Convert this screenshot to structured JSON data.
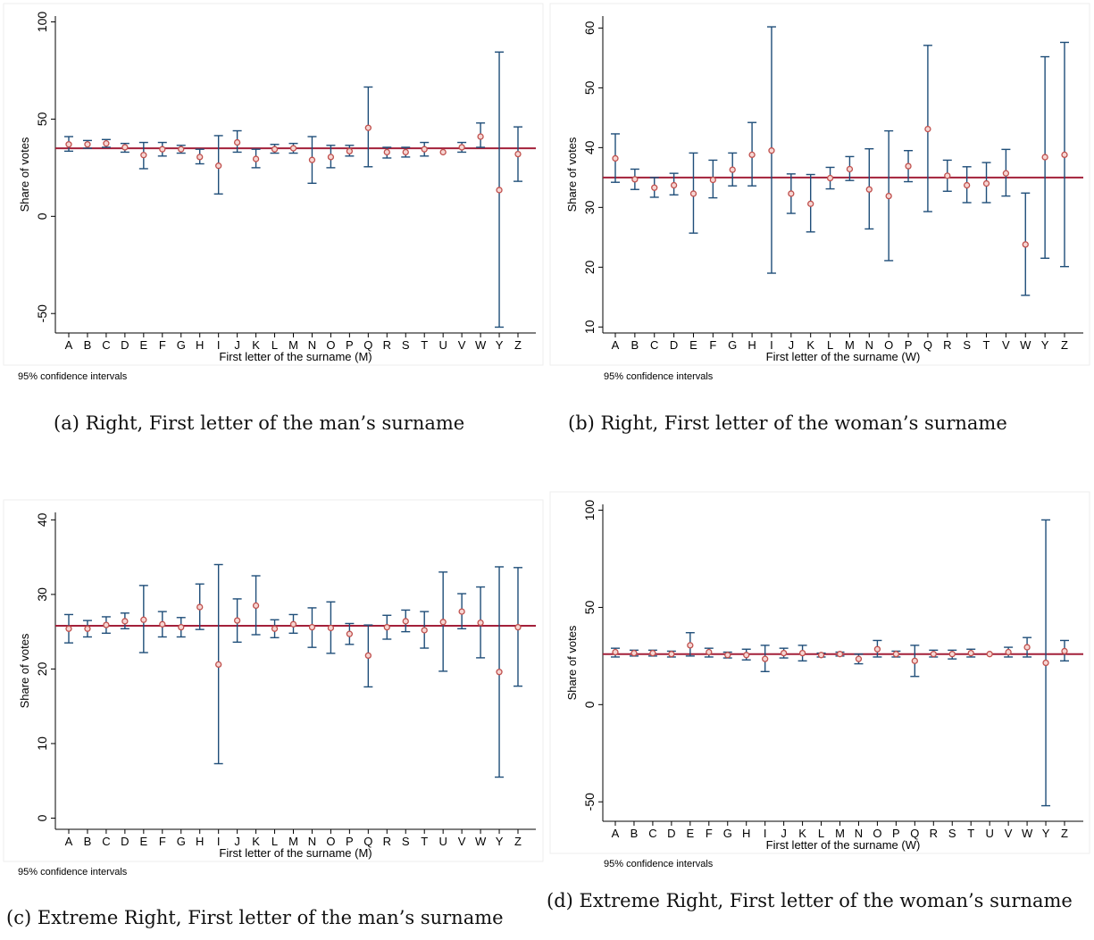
{
  "chart_data": [
    {
      "type": "scatter",
      "subtype": "point-with-confidence-intervals",
      "caption": "(a) Right, First letter of the man’s surname",
      "xlabel": "First letter of the surname (M)",
      "ylabel": "Share of votes",
      "note": "95% confidence intervals",
      "categories": [
        "A",
        "B",
        "C",
        "D",
        "E",
        "F",
        "G",
        "H",
        "I",
        "J",
        "K",
        "L",
        "M",
        "N",
        "O",
        "P",
        "Q",
        "R",
        "S",
        "T",
        "U",
        "V",
        "W",
        "Y",
        "Z"
      ],
      "yticks": [
        -50,
        0,
        50,
        100
      ],
      "ylim": [
        -60,
        103
      ],
      "reference_line": 35,
      "estimates": [
        37,
        37,
        37.5,
        35.5,
        31.5,
        34.5,
        34.5,
        30.5,
        26,
        38,
        29.5,
        34.5,
        35,
        29,
        30.5,
        33.5,
        45.5,
        33,
        33,
        34.5,
        33,
        35.5,
        41,
        13.5,
        32
      ],
      "ci_low": [
        33.5,
        35,
        35.5,
        33,
        24.5,
        31,
        32.5,
        27,
        11.5,
        33,
        25,
        32.5,
        32.5,
        17,
        25,
        31,
        25.5,
        30,
        30.5,
        31,
        33,
        33,
        35.5,
        -57,
        18
      ],
      "ci_high": [
        41,
        39,
        39.5,
        37.5,
        38,
        38,
        36.5,
        34.5,
        41.5,
        44,
        34.5,
        37,
        37.5,
        41,
        36.5,
        36.5,
        66.5,
        35.5,
        35.5,
        38,
        33,
        38,
        48,
        84.5,
        46
      ],
      "colors": {
        "point": "#c0504d",
        "bar": "#1f4e79",
        "line": "#a3203a"
      }
    },
    {
      "type": "scatter",
      "subtype": "point-with-confidence-intervals",
      "caption": "(b) Right, First letter of the woman’s surname",
      "xlabel": "First letter of the surname (W)",
      "ylabel": "Share of votes",
      "note": "95% confidence intervals",
      "categories": [
        "A",
        "B",
        "C",
        "D",
        "E",
        "F",
        "G",
        "H",
        "I",
        "J",
        "K",
        "L",
        "M",
        "N",
        "O",
        "P",
        "Q",
        "R",
        "S",
        "T",
        "V",
        "W",
        "Y",
        "Z"
      ],
      "yticks": [
        10,
        20,
        30,
        40,
        50,
        60
      ],
      "ylim": [
        9,
        62
      ],
      "reference_line": 35,
      "estimates": [
        38.2,
        34.7,
        33.3,
        33.7,
        32.3,
        34.6,
        36.3,
        38.8,
        39.5,
        32.3,
        30.6,
        34.9,
        36.4,
        33,
        31.9,
        36.9,
        43.1,
        35.3,
        33.7,
        34,
        35.7,
        23.8,
        38.4,
        38.8
      ],
      "ci_low": [
        34.2,
        33,
        31.7,
        32.1,
        25.7,
        31.6,
        33.6,
        33.6,
        19,
        29,
        25.9,
        33.1,
        34.5,
        26.4,
        21.1,
        34.3,
        29.3,
        32.7,
        30.8,
        30.8,
        31.9,
        15.3,
        21.5,
        20.1
      ],
      "ci_high": [
        42.3,
        36.4,
        35,
        35.7,
        39.1,
        37.9,
        39.1,
        44.2,
        60.2,
        35.6,
        35.5,
        36.7,
        38.5,
        39.8,
        42.8,
        39.5,
        57.1,
        37.9,
        36.8,
        37.5,
        39.7,
        32.4,
        55.2,
        57.6
      ],
      "colors": {
        "point": "#c0504d",
        "bar": "#1f4e79",
        "line": "#a3203a"
      }
    },
    {
      "type": "scatter",
      "subtype": "point-with-confidence-intervals",
      "caption": "(c) Extreme Right, First letter of the man’s surname",
      "xlabel": "First letter of the surname (M)",
      "ylabel": "Share of votes",
      "note": "95% confidence intervals",
      "categories": [
        "A",
        "B",
        "C",
        "D",
        "E",
        "F",
        "G",
        "H",
        "I",
        "J",
        "K",
        "L",
        "M",
        "N",
        "O",
        "P",
        "Q",
        "R",
        "S",
        "T",
        "U",
        "V",
        "W",
        "Y",
        "Z"
      ],
      "yticks": [
        0,
        10,
        20,
        30,
        40
      ],
      "ylim": [
        -1.5,
        41
      ],
      "reference_line": 25.8,
      "estimates": [
        25.4,
        25.4,
        25.9,
        26.4,
        26.6,
        26,
        25.6,
        28.3,
        20.6,
        26.5,
        28.5,
        25.4,
        26,
        25.6,
        25.5,
        24.7,
        21.8,
        25.6,
        26.4,
        25.2,
        26.3,
        27.7,
        26.2,
        19.6,
        25.6
      ],
      "ci_low": [
        23.5,
        24.3,
        24.8,
        25.4,
        22.2,
        24.3,
        24.3,
        25.3,
        7.3,
        23.6,
        24.6,
        24.2,
        24.8,
        22.9,
        22.1,
        23.3,
        17.6,
        24,
        25,
        22.8,
        19.7,
        25.4,
        21.5,
        5.5,
        17.7
      ],
      "ci_high": [
        27.3,
        26.5,
        27,
        27.5,
        31.2,
        27.7,
        26.9,
        31.4,
        34,
        29.4,
        32.5,
        26.6,
        27.3,
        28.2,
        29,
        26.1,
        25.9,
        27.2,
        27.9,
        27.7,
        33,
        30.1,
        31,
        33.7,
        33.6
      ],
      "colors": {
        "point": "#c0504d",
        "bar": "#1f4e79",
        "line": "#a3203a"
      }
    },
    {
      "type": "scatter",
      "subtype": "point-with-confidence-intervals",
      "caption": "(d) Extreme Right, First letter of the woman’s surname",
      "xlabel": "First letter of the surname (W)",
      "ylabel": "Share of votes",
      "note": "95% confidence intervals",
      "categories": [
        "A",
        "B",
        "C",
        "D",
        "E",
        "F",
        "G",
        "H",
        "I",
        "J",
        "K",
        "L",
        "M",
        "N",
        "O",
        "P",
        "Q",
        "R",
        "S",
        "T",
        "U",
        "V",
        "W",
        "Y",
        "Z"
      ],
      "yticks": [
        -50,
        0,
        50,
        100
      ],
      "ylim": [
        -60,
        103
      ],
      "reference_line": 26,
      "estimates": [
        27,
        26.5,
        26.5,
        26,
        30.5,
        27,
        25.5,
        25.5,
        23.5,
        26.5,
        26.5,
        25.5,
        26,
        23.5,
        28.5,
        26,
        22.5,
        26,
        26,
        26.5,
        26,
        27,
        29.5,
        21.5,
        27.5
      ],
      "ci_low": [
        24.5,
        25,
        25,
        24.5,
        25,
        24.5,
        24,
        23,
        17,
        24,
        22.5,
        24.5,
        25,
        21,
        24.5,
        24.5,
        14.5,
        24.5,
        23.5,
        24.5,
        26,
        24.5,
        24.5,
        -52,
        22.5
      ],
      "ci_high": [
        29,
        28,
        28,
        27.5,
        37,
        29,
        27,
        28.5,
        30.5,
        29,
        30.5,
        26.5,
        27,
        26,
        33,
        27.5,
        30.5,
        28,
        28,
        28.5,
        26,
        29.5,
        34.5,
        95,
        33
      ],
      "colors": {
        "point": "#c0504d",
        "bar": "#1f4e79",
        "line": "#a3203a"
      }
    }
  ]
}
